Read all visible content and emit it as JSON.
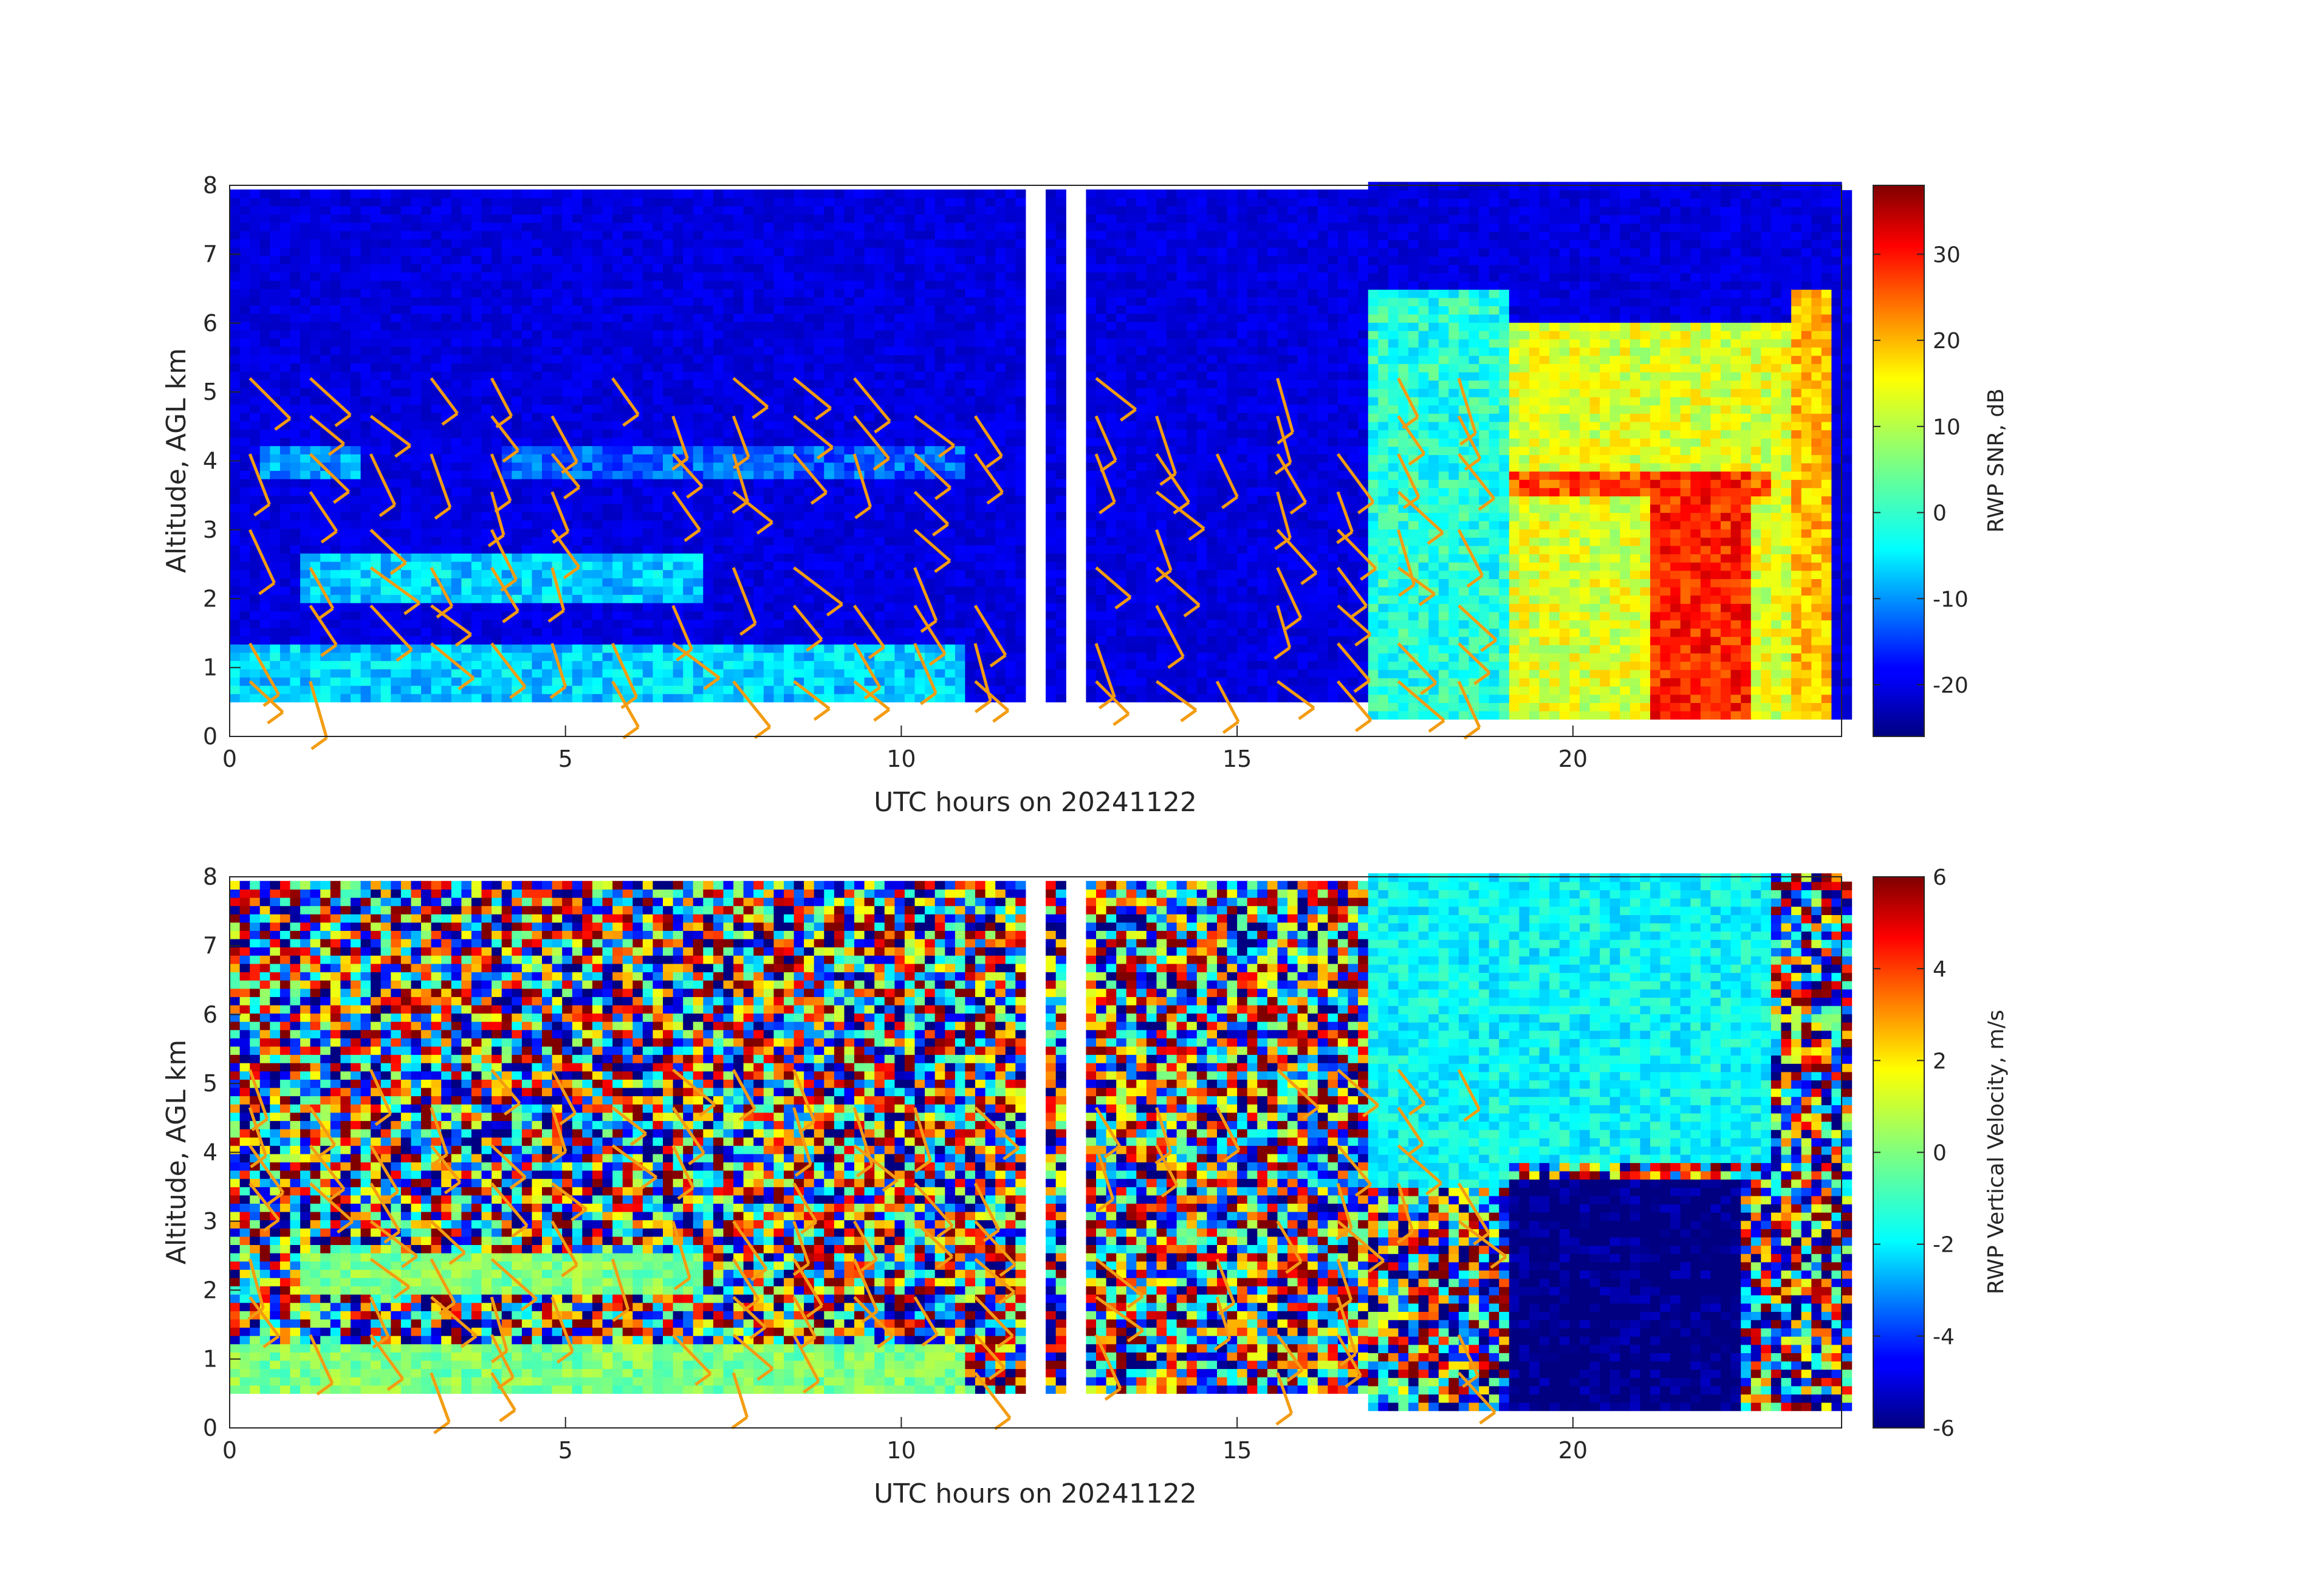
{
  "chart_data": [
    {
      "type": "heatmap",
      "title": "",
      "xlabel": "UTC hours on 20241122",
      "ylabel": "Altitude, AGL km",
      "xlim": [
        0,
        24
      ],
      "ylim": [
        0,
        8
      ],
      "xticks": [
        0,
        5,
        10,
        15,
        20
      ],
      "yticks": [
        0,
        1,
        2,
        3,
        4,
        5,
        6,
        7,
        8
      ],
      "colorbar": {
        "label": "RWP SNR, dB",
        "range": [
          -26,
          38
        ],
        "ticks": [
          -20,
          -10,
          0,
          10,
          20,
          30
        ],
        "colormap": "jet"
      },
      "data_gaps_hours": [
        [
          11.9,
          12.1
        ],
        [
          12.4,
          12.8
        ]
      ],
      "features": [
        {
          "x_range": [
            0,
            11
          ],
          "y_range": [
            0.5,
            1.3
          ],
          "snr_db": -5
        },
        {
          "x_range": [
            1,
            7
          ],
          "y_range": [
            2.0,
            2.7
          ],
          "snr_db": -5
        },
        {
          "x_range": [
            0.5,
            2
          ],
          "y_range": [
            3.8,
            4.2
          ],
          "snr_db": -8
        },
        {
          "x_range": [
            4,
            11
          ],
          "y_range": [
            3.8,
            4.2
          ],
          "snr_db": -12
        },
        {
          "x_range": [
            17,
            19
          ],
          "y_range": [
            0.3,
            6.5
          ],
          "snr_db": 0
        },
        {
          "x_range": [
            19,
            23.5
          ],
          "y_range": [
            0.3,
            6.0
          ],
          "snr_db": 12
        },
        {
          "x_range": [
            21.2,
            22.6
          ],
          "y_range": [
            0.3,
            3.8
          ],
          "snr_db": 28
        },
        {
          "x_range": [
            19,
            23
          ],
          "y_range": [
            3.5,
            3.9
          ],
          "snr_db": 25
        },
        {
          "x_range": [
            23.2,
            23.9
          ],
          "y_range": [
            0.3,
            6.5
          ],
          "snr_db": 18
        }
      ],
      "wind_barbs": {
        "color": "#f39c12",
        "note_sampled": true
      }
    },
    {
      "type": "heatmap",
      "title": "",
      "xlabel": "UTC hours on 20241122",
      "ylabel": "Altitude, AGL km",
      "xlim": [
        0,
        24
      ],
      "ylim": [
        0,
        8
      ],
      "xticks": [
        0,
        5,
        10,
        15,
        20
      ],
      "yticks": [
        0,
        1,
        2,
        3,
        4,
        5,
        6,
        7,
        8
      ],
      "colorbar": {
        "label": "RWP Vertical Velocity, m/s",
        "range": [
          -6,
          6
        ],
        "ticks": [
          -6,
          -4,
          -2,
          0,
          2,
          4,
          6
        ],
        "colormap": "jet"
      },
      "data_gaps_hours": [
        [
          11.9,
          12.1
        ],
        [
          12.4,
          12.8
        ]
      ],
      "features": [
        {
          "x_range": [
            0,
            11
          ],
          "y_range": [
            0.5,
            8
          ],
          "w_ms": "noise"
        },
        {
          "x_range": [
            0,
            11
          ],
          "y_range": [
            0.5,
            1.2
          ],
          "w_ms": 0
        },
        {
          "x_range": [
            1,
            7
          ],
          "y_range": [
            2.0,
            2.6
          ],
          "w_ms": 0
        },
        {
          "x_range": [
            17,
            19
          ],
          "y_range": [
            3.5,
            8
          ],
          "w_ms": -1.5
        },
        {
          "x_range": [
            19,
            23
          ],
          "y_range": [
            3.8,
            8
          ],
          "w_ms": -1.5
        },
        {
          "x_range": [
            19,
            22.5
          ],
          "y_range": [
            0.3,
            3.6
          ],
          "w_ms": -6
        }
      ],
      "wind_barbs": {
        "color": "#f39c12",
        "note_sampled": true
      }
    }
  ]
}
